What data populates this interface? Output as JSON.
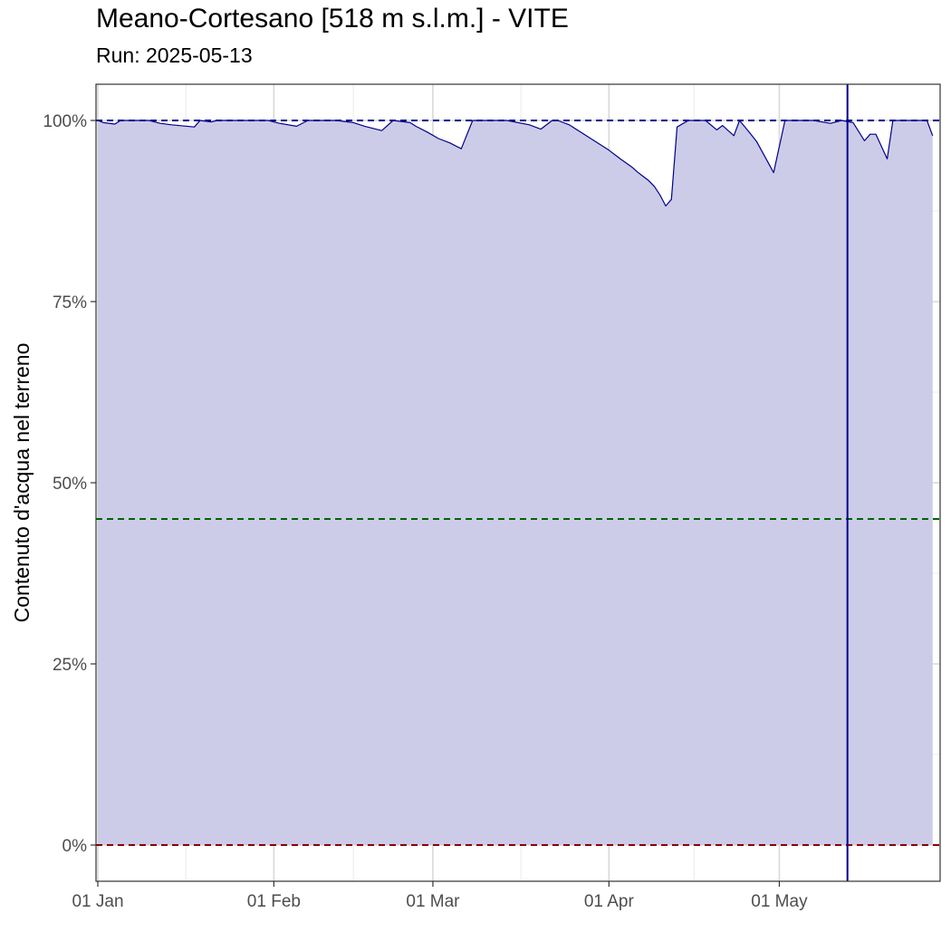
{
  "chart_data": {
    "type": "area",
    "title": "Meano-Cortesano [518 m s.l.m.] - VITE",
    "subtitle": "Run: 2025-05-13",
    "xlabel": "",
    "ylabel": "Contenuto d'acqua nel terreno",
    "x_ticks": [
      "01 Jan",
      "01 Feb",
      "01 Mar",
      "01 Apr",
      "01 May"
    ],
    "y_ticks": [
      "0%",
      "25%",
      "50%",
      "75%",
      "100%"
    ],
    "xlim": [
      "2025-01-01",
      "2025-05-29"
    ],
    "ylim": [
      -5,
      105
    ],
    "grid": true,
    "fill_color": "#cccce8",
    "line_color": "#00008b",
    "reference_lines": [
      {
        "y": 100,
        "color": "#00008b",
        "style": "dashed"
      },
      {
        "y": 45,
        "color": "#006400",
        "style": "dashed"
      },
      {
        "y": 0,
        "color": "#8b0000",
        "style": "dashed"
      }
    ],
    "vertical_line": {
      "x": "2025-05-13",
      "color": "#00008b"
    },
    "series": [
      {
        "x": [
          "2025-01-01",
          "2025-01-02",
          "2025-01-04",
          "2025-01-05",
          "2025-01-07",
          "2025-01-10",
          "2025-01-12",
          "2025-01-14",
          "2025-01-18",
          "2025-01-19",
          "2025-01-21",
          "2025-01-22",
          "2025-01-25",
          "2025-01-28",
          "2025-01-31",
          "2025-02-02",
          "2025-02-05",
          "2025-02-07",
          "2025-02-09",
          "2025-02-12",
          "2025-02-15",
          "2025-02-17",
          "2025-02-20",
          "2025-02-22",
          "2025-02-25",
          "2025-02-26",
          "2025-02-28",
          "2025-03-02",
          "2025-03-04",
          "2025-03-06",
          "2025-03-08",
          "2025-03-09",
          "2025-03-10",
          "2025-03-14",
          "2025-03-18",
          "2025-03-20",
          "2025-03-22",
          "2025-03-23",
          "2025-03-25",
          "2025-03-27",
          "2025-03-29",
          "2025-04-01",
          "2025-04-03",
          "2025-04-05",
          "2025-04-06",
          "2025-04-07",
          "2025-04-08",
          "2025-04-09",
          "2025-04-10",
          "2025-04-11",
          "2025-04-12",
          "2025-04-13",
          "2025-04-15",
          "2025-04-18",
          "2025-04-20",
          "2025-04-21",
          "2025-04-23",
          "2025-04-24",
          "2025-04-26",
          "2025-04-27",
          "2025-04-30",
          "2025-05-02",
          "2025-05-03",
          "2025-05-04",
          "2025-05-07",
          "2025-05-10",
          "2025-05-12",
          "2025-05-14",
          "2025-05-16",
          "2025-05-17",
          "2025-05-18",
          "2025-05-20",
          "2025-05-21",
          "2025-05-24",
          "2025-05-27",
          "2025-05-28"
        ],
        "y": [
          100,
          99.7,
          99.5,
          100,
          100,
          100,
          99.6,
          99.4,
          99.1,
          100,
          99.8,
          100,
          100,
          100,
          100,
          99.6,
          99.2,
          100,
          100,
          100,
          99.7,
          99.2,
          98.6,
          100,
          99.7,
          99.2,
          98.4,
          97.5,
          96.9,
          96.1,
          100,
          100,
          100,
          100,
          99.4,
          98.8,
          100,
          100,
          99.4,
          98.4,
          97.4,
          95.9,
          94.7,
          93.6,
          92.9,
          92.3,
          91.7,
          90.9,
          89.7,
          88.2,
          89.1,
          99.1,
          100,
          100,
          98.7,
          99.3,
          97.9,
          100,
          98.1,
          97.1,
          92.8,
          100,
          100,
          100,
          100,
          99.6,
          100,
          99.7,
          97.2,
          98.1,
          98.1,
          94.7,
          100,
          100,
          100,
          97.9
        ]
      }
    ]
  }
}
